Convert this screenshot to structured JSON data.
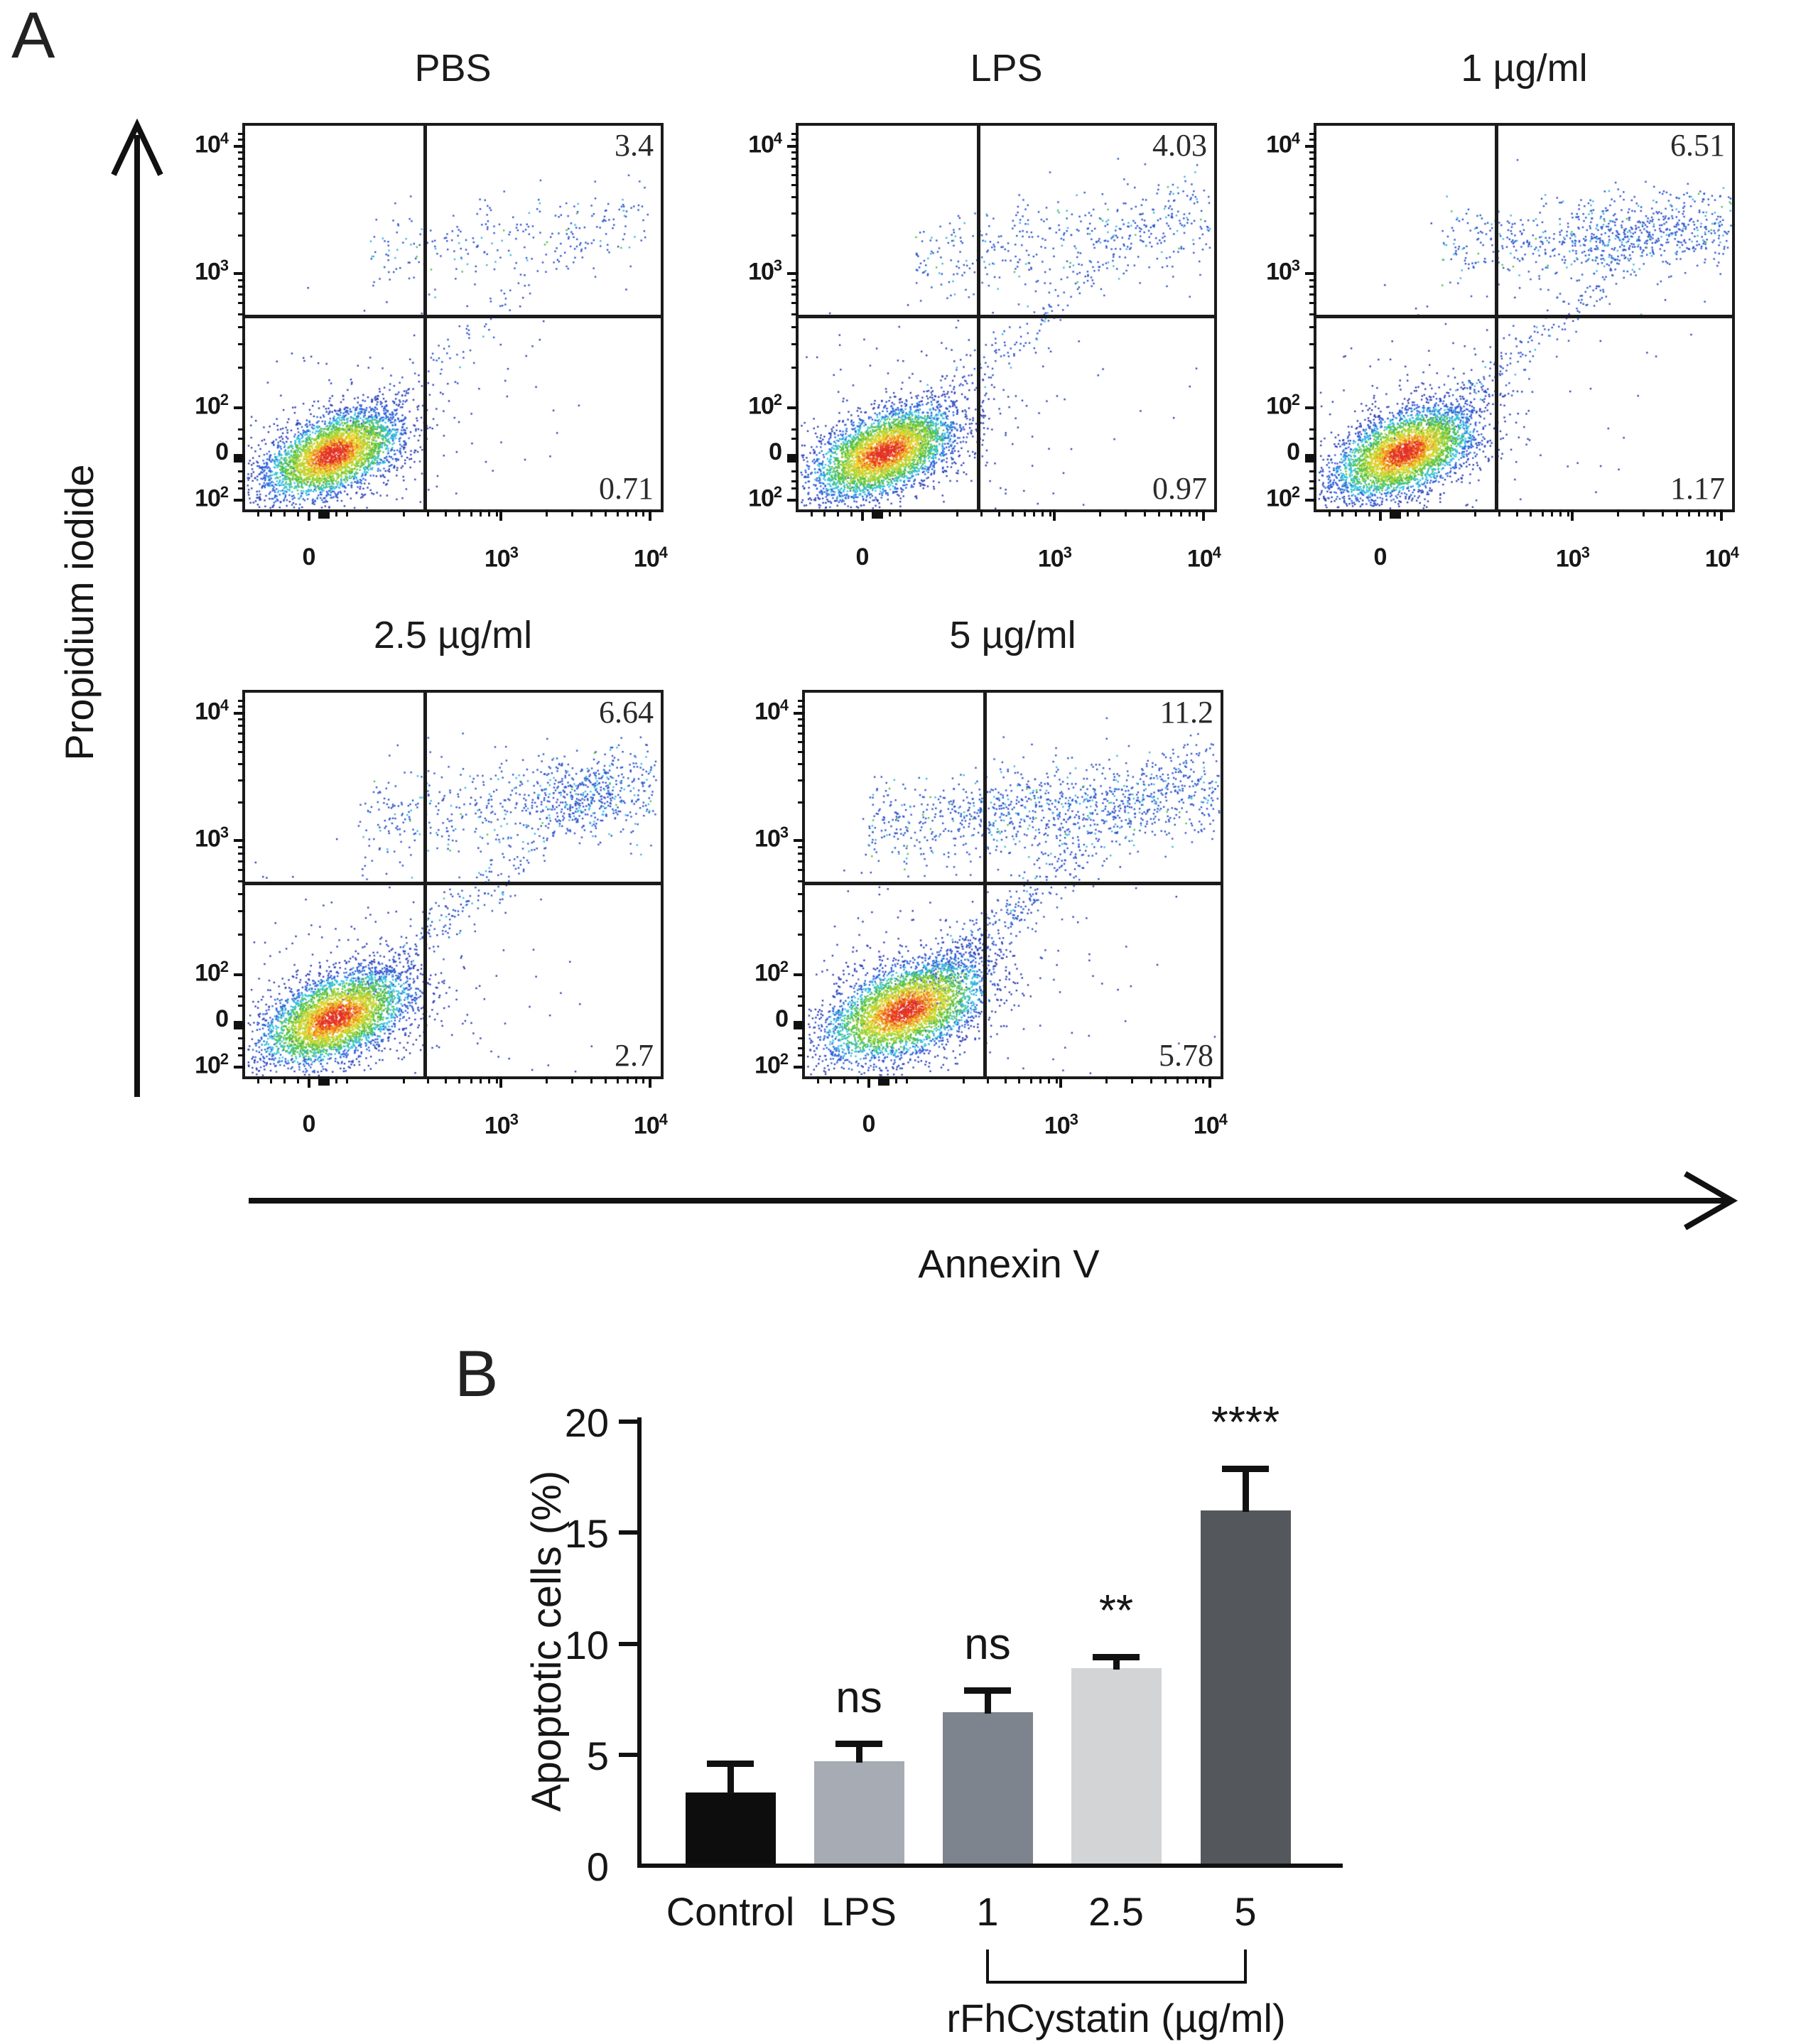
{
  "panel_a": {
    "label": "A"
  },
  "panel_b": {
    "label": "B"
  },
  "chart_data": [
    {
      "type": "scatter",
      "subtype": "flow-cytometry-pseudocolor-density",
      "panel": "A",
      "x_axis_label": "Annexin V",
      "y_axis_label": "Propidium iodide",
      "y_tick_labels": [
        "10^4",
        "10^3",
        "10^2",
        "0",
        "10^2"
      ],
      "x_tick_labels": [
        "0",
        "10^3",
        "10^4"
      ],
      "quadrant_gate": {
        "x_fraction": 0.432,
        "y_fraction": 0.496
      },
      "density_ramp": [
        {
          "r": 0.4,
          "c": "#e23325"
        },
        {
          "r": 0.64,
          "c": "#f2801f"
        },
        {
          "r": 0.9,
          "c": "#e8d52e"
        },
        {
          "r": 1.18,
          "c": "#a8d434"
        },
        {
          "r": 1.48,
          "c": "#4fc04a"
        },
        {
          "r": 1.78,
          "c": "#35c2df"
        },
        {
          "r": 2.2,
          "c": "#2f62d9"
        },
        {
          "r": 99,
          "c": "#2f41b5"
        }
      ],
      "point_blue": "#2f55cc",
      "point_cyan": "#39b8e0",
      "plots": [
        {
          "title": "PBS",
          "q_upper_right": "3.4",
          "q_lower_right": "0.71",
          "cloud": {
            "seed": 11,
            "cluster": {
              "n": 3600,
              "cx": 0.21,
              "cy": 0.855,
              "sx": 0.085,
              "sy": 0.052,
              "tilt": 0.55
            },
            "halo": {
              "n": 260,
              "mx": 2.8,
              "my": 3.4
            },
            "tail": {
              "n": 150,
              "x0": 0.27,
              "y0": 0.79,
              "x1": 0.93,
              "y1": 0.17,
              "w": 0.025
            },
            "band": {
              "n": 230,
              "x0": 0.3,
              "x1": 0.97,
              "cy": 0.3,
              "slope": -0.12,
              "sy": 0.055
            },
            "blobs": []
          }
        },
        {
          "title": "LPS",
          "q_upper_right": "4.03",
          "q_lower_right": "0.97",
          "cloud": {
            "seed": 22,
            "cluster": {
              "n": 3900,
              "cx": 0.205,
              "cy": 0.85,
              "sx": 0.088,
              "sy": 0.054,
              "tilt": 0.55
            },
            "halo": {
              "n": 280,
              "mx": 2.8,
              "my": 3.4
            },
            "tail": {
              "n": 260,
              "x0": 0.27,
              "y0": 0.79,
              "x1": 0.94,
              "y1": 0.16,
              "w": 0.027
            },
            "band": {
              "n": 420,
              "x0": 0.28,
              "x1": 0.99,
              "cy": 0.31,
              "slope": -0.14,
              "sy": 0.06
            },
            "blobs": []
          }
        },
        {
          "title": "1 µg/ml",
          "q_upper_right": "6.51",
          "q_lower_right": "1.17",
          "cloud": {
            "seed": 33,
            "cluster": {
              "n": 3900,
              "cx": 0.21,
              "cy": 0.85,
              "sx": 0.088,
              "sy": 0.054,
              "tilt": 0.55
            },
            "halo": {
              "n": 280,
              "mx": 2.8,
              "my": 3.4
            },
            "tail": {
              "n": 300,
              "x0": 0.28,
              "y0": 0.78,
              "x1": 0.94,
              "y1": 0.16,
              "w": 0.027
            },
            "band": {
              "n": 520,
              "x0": 0.3,
              "x1": 1.0,
              "cy": 0.3,
              "slope": -0.1,
              "sy": 0.055
            },
            "blobs": [
              {
                "n": 260,
                "cx": 0.75,
                "cy": 0.29,
                "sx": 0.1,
                "sy": 0.045
              }
            ]
          }
        },
        {
          "title": "2.5 µg/ml",
          "q_upper_right": "6.64",
          "q_lower_right": "2.7",
          "cloud": {
            "seed": 44,
            "cluster": {
              "n": 3900,
              "cx": 0.215,
              "cy": 0.845,
              "sx": 0.092,
              "sy": 0.056,
              "tilt": 0.55
            },
            "halo": {
              "n": 300,
              "mx": 2.8,
              "my": 3.4
            },
            "tail": {
              "n": 360,
              "x0": 0.28,
              "y0": 0.78,
              "x1": 0.94,
              "y1": 0.16,
              "w": 0.028
            },
            "band": {
              "n": 520,
              "x0": 0.27,
              "x1": 0.99,
              "cy": 0.3,
              "slope": -0.12,
              "sy": 0.06
            },
            "blobs": [
              {
                "n": 260,
                "cx": 0.8,
                "cy": 0.27,
                "sx": 0.075,
                "sy": 0.05
              }
            ]
          }
        },
        {
          "title": "5 µg/ml",
          "q_upper_right": "11.2",
          "q_lower_right": "5.78",
          "cloud": {
            "seed": 55,
            "cluster": {
              "n": 3900,
              "cx": 0.24,
              "cy": 0.825,
              "sx": 0.1,
              "sy": 0.06,
              "tilt": 0.55
            },
            "halo": {
              "n": 320,
              "mx": 2.6,
              "my": 3.2
            },
            "tail": {
              "n": 560,
              "x0": 0.28,
              "y0": 0.77,
              "x1": 0.95,
              "y1": 0.15,
              "w": 0.03
            },
            "band": {
              "n": 820,
              "x0": 0.15,
              "x1": 1.0,
              "cy": 0.3,
              "slope": -0.1,
              "sy": 0.06
            },
            "blobs": [
              {
                "n": 220,
                "cx": 0.58,
                "cy": 0.3,
                "sx": 0.12,
                "sy": 0.05
              }
            ]
          }
        }
      ]
    },
    {
      "type": "bar",
      "panel": "B",
      "categories": [
        "Control",
        "LPS",
        "1",
        "2.5",
        "5"
      ],
      "values": [
        3.3,
        4.7,
        6.9,
        8.9,
        16.0
      ],
      "error_upper": [
        1.2,
        0.7,
        0.9,
        0.4,
        1.8
      ],
      "significance": [
        "",
        "ns",
        "ns",
        "**",
        "****"
      ],
      "bar_colors": [
        "#0d0d0d",
        "#a6abb4",
        "#7d848d",
        "#d2d4d6",
        "#54585c"
      ],
      "ylabel": "Apoptotic cells (%)",
      "ylim": [
        0,
        20
      ],
      "y_ticks": [
        0,
        5,
        10,
        15,
        20
      ],
      "grid": false,
      "group_bracket": {
        "from_index": 2,
        "to_index": 4,
        "label": "rFhCystatin (µg/ml)"
      }
    }
  ]
}
